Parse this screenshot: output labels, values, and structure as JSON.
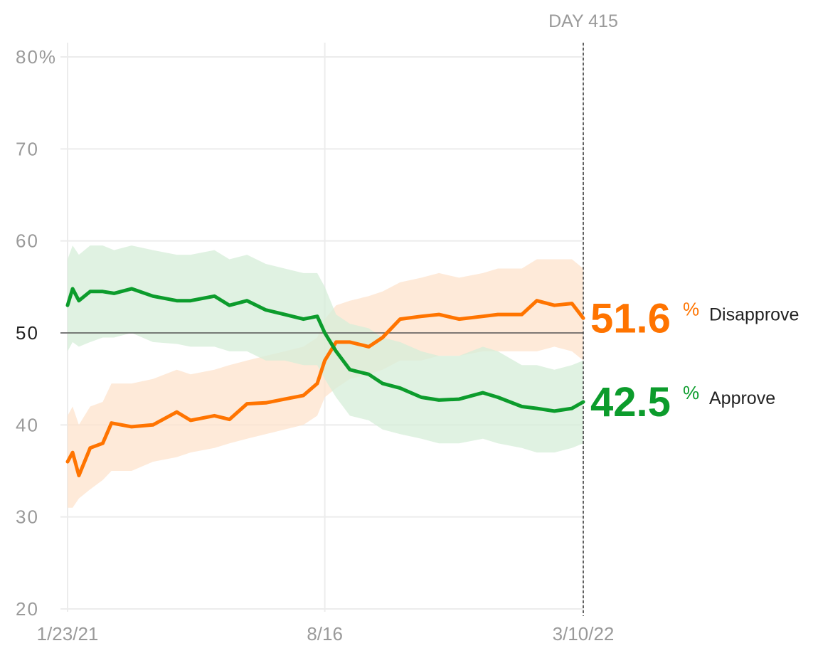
{
  "chart_data": {
    "type": "line",
    "title": "",
    "xlabel": "",
    "ylabel": "",
    "ylim": [
      20,
      80
    ],
    "grid": true,
    "x_ticks": [
      {
        "date": "2021-01-23",
        "label": "1/23/21"
      },
      {
        "date": "2021-08-16",
        "label": "8/16"
      },
      {
        "date": "2022-03-10",
        "label": "3/10/22"
      }
    ],
    "y_ticks": [
      {
        "value": 80,
        "label": "80%"
      },
      {
        "value": 70,
        "label": "70"
      },
      {
        "value": 60,
        "label": "60"
      },
      {
        "value": 50,
        "label": "50"
      },
      {
        "value": 40,
        "label": "40"
      },
      {
        "value": 30,
        "label": "30"
      },
      {
        "value": 20,
        "label": "20"
      }
    ],
    "reference_line": {
      "y": 50
    },
    "current_marker": {
      "date": "2022-03-10",
      "label": "DAY 415"
    },
    "series": [
      {
        "name": "Disapprove",
        "color": "#ff7400",
        "band_color": "#fde3cc",
        "latest_value": "51.6",
        "percent_sign": "%",
        "x": [
          "2021-01-23",
          "2021-01-27",
          "2021-02-01",
          "2021-02-10",
          "2021-02-20",
          "2021-02-27",
          "2021-03-15",
          "2021-04-01",
          "2021-04-20",
          "2021-05-01",
          "2021-05-20",
          "2021-06-01",
          "2021-06-15",
          "2021-06-30",
          "2021-07-15",
          "2021-07-30",
          "2021-08-10",
          "2021-08-16",
          "2021-08-25",
          "2021-09-05",
          "2021-09-20",
          "2021-10-01",
          "2021-10-15",
          "2021-11-01",
          "2021-11-15",
          "2021-12-01",
          "2021-12-20",
          "2022-01-01",
          "2022-01-20",
          "2022-02-01",
          "2022-02-15",
          "2022-03-01",
          "2022-03-10"
        ],
        "values": [
          36,
          37,
          34.5,
          37.5,
          38,
          40.2,
          39.8,
          40,
          41.4,
          40.5,
          41,
          40.6,
          42.3,
          42.4,
          42.8,
          43.2,
          44.5,
          47,
          49,
          49,
          48.5,
          49.5,
          51.5,
          51.8,
          52,
          51.5,
          51.8,
          52,
          52,
          53.5,
          53,
          53.2,
          51.6
        ],
        "band_low": [
          31,
          31,
          32,
          33,
          34,
          35,
          35,
          36,
          36.5,
          37,
          37.5,
          38,
          38.5,
          39,
          39.5,
          40,
          41,
          43,
          44,
          45,
          45.5,
          46,
          47,
          47,
          47.5,
          47.5,
          48,
          48,
          48,
          48,
          48.5,
          48,
          47
        ],
        "band_high": [
          41,
          42,
          40,
          42,
          42.5,
          44.5,
          44.5,
          45,
          46,
          45.5,
          46,
          46.5,
          47,
          47.5,
          48,
          48.5,
          49.5,
          51.5,
          53,
          53.5,
          54,
          54.5,
          55.5,
          56,
          56.5,
          56,
          56.5,
          57,
          57,
          58,
          58,
          58,
          57
        ]
      },
      {
        "name": "Approve",
        "color": "#0c9c2c",
        "band_color": "#d6eed8",
        "latest_value": "42.5",
        "percent_sign": "%",
        "x": [
          "2021-01-23",
          "2021-01-27",
          "2021-02-01",
          "2021-02-10",
          "2021-02-20",
          "2021-03-01",
          "2021-03-15",
          "2021-04-01",
          "2021-04-20",
          "2021-05-01",
          "2021-05-20",
          "2021-06-01",
          "2021-06-15",
          "2021-06-30",
          "2021-07-15",
          "2021-07-30",
          "2021-08-10",
          "2021-08-16",
          "2021-08-25",
          "2021-09-05",
          "2021-09-20",
          "2021-10-01",
          "2021-10-15",
          "2021-11-01",
          "2021-11-15",
          "2021-12-01",
          "2021-12-20",
          "2022-01-01",
          "2022-01-20",
          "2022-02-01",
          "2022-02-15",
          "2022-03-01",
          "2022-03-10"
        ],
        "values": [
          53,
          54.8,
          53.5,
          54.5,
          54.5,
          54.3,
          54.8,
          54,
          53.5,
          53.5,
          54,
          53,
          53.5,
          52.5,
          52,
          51.5,
          51.8,
          50,
          48,
          46,
          45.5,
          44.5,
          44,
          43,
          42.7,
          42.8,
          43.5,
          43,
          42,
          41.8,
          41.5,
          41.8,
          42.5
        ],
        "band_low": [
          48,
          49,
          48.5,
          49,
          49.5,
          49.5,
          50,
          49,
          48.8,
          48.5,
          48.5,
          48,
          48,
          47,
          47,
          46.5,
          46.5,
          45,
          43,
          41,
          40.5,
          39.5,
          39,
          38.5,
          38,
          38,
          38.5,
          38,
          37.5,
          37,
          37,
          37.5,
          38
        ],
        "band_high": [
          58,
          59.5,
          58.5,
          59.5,
          59.5,
          59,
          59.5,
          59,
          58.5,
          58.5,
          59,
          58,
          58.5,
          57.5,
          57,
          56.5,
          56.5,
          55,
          52,
          51,
          50.5,
          49.5,
          49,
          48,
          47.5,
          47.5,
          48.5,
          48,
          46.5,
          46.5,
          46,
          46.5,
          47
        ]
      }
    ]
  }
}
